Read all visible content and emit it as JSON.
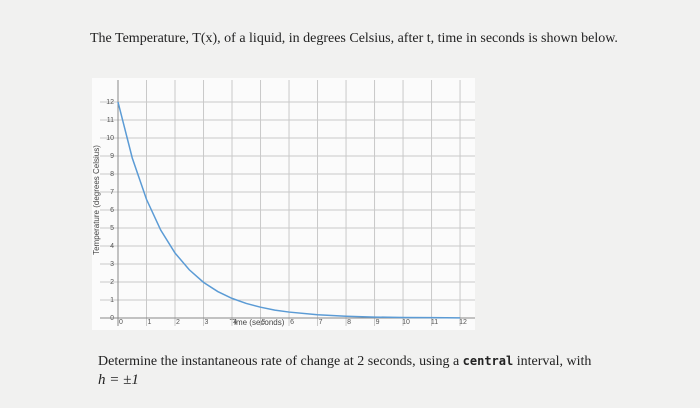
{
  "header_text": "The Temperature, T(x), of a liquid, in degrees Celsius, after t, time in seconds is shown below.",
  "chart_data": {
    "type": "line",
    "x_label": "Time (seconds)",
    "y_label": "Temperature (degrees Celsius)",
    "x": [
      0,
      0.5,
      1,
      1.5,
      2,
      2.5,
      3,
      3.5,
      4,
      4.5,
      5,
      5.5,
      6,
      7,
      8,
      9,
      10,
      11,
      12
    ],
    "series": [
      {
        "color": "#5b9bd5",
        "values": [
          12,
          8.89,
          6.59,
          4.88,
          3.61,
          2.68,
          1.98,
          1.47,
          1.09,
          0.81,
          0.6,
          0.44,
          0.33,
          0.18,
          0.1,
          0.05,
          0.03,
          0.02,
          0.01
        ]
      }
    ],
    "xlim": [
      0,
      12.3
    ],
    "ylim": [
      0,
      13
    ],
    "xticks": [
      0,
      1,
      2,
      3,
      4,
      5,
      6,
      7,
      8,
      9,
      10,
      11,
      12
    ],
    "yticks": [
      0,
      1,
      2,
      3,
      4,
      5,
      6,
      7,
      8,
      9,
      10,
      11,
      12
    ],
    "grid": true
  },
  "question": {
    "before": "Determine the instantaneous rate of change at 2 seconds, using a ",
    "emphasis": "central",
    "after": " interval, with",
    "formula": "h = ±1"
  }
}
